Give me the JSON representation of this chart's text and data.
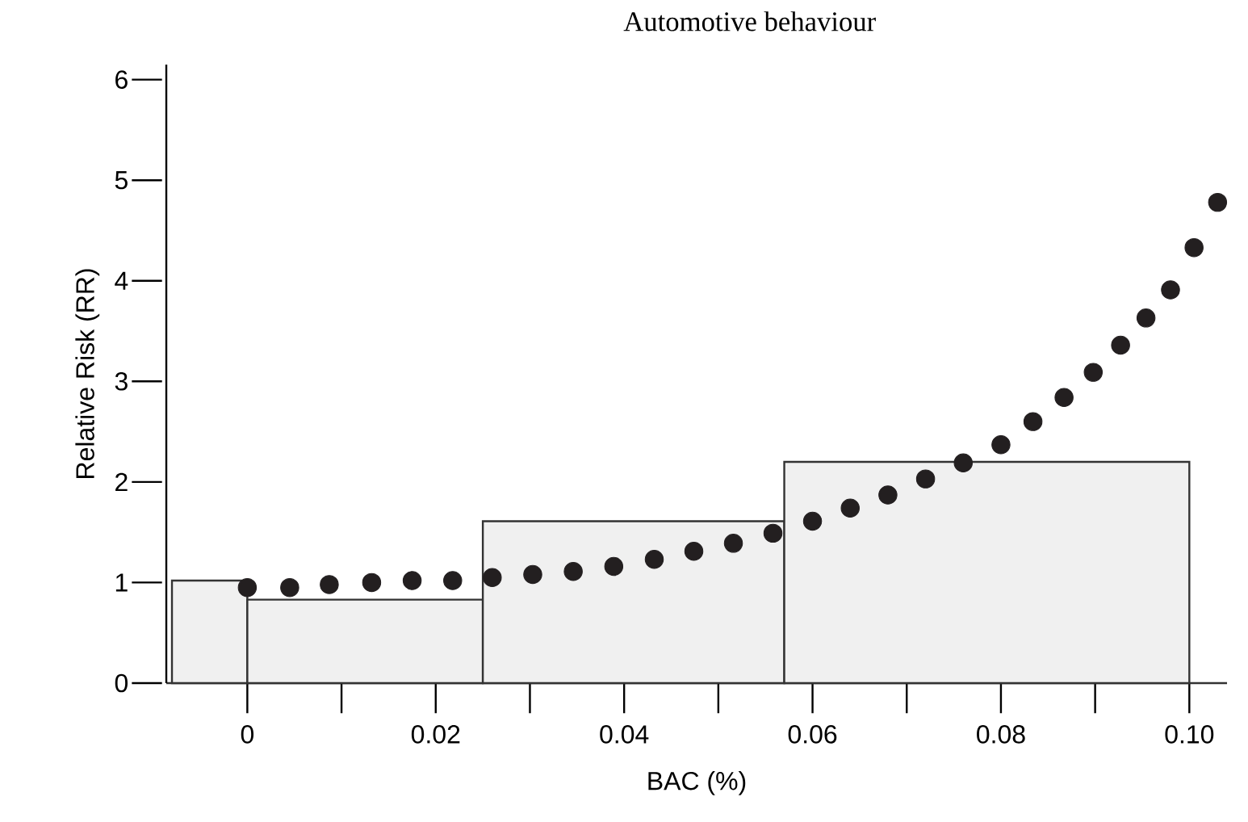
{
  "chart_data": {
    "type": "histogram",
    "title": "Automotive behaviour",
    "xlabel": "BAC (%)",
    "ylabel": "Relative Risk (RR)",
    "series": [
      {
        "type": "histogram",
        "color": "#f0f0f0",
        "bins": [
          -0.008,
          0,
          0.025,
          0.057,
          0.1
        ],
        "values": [
          1.02,
          0.83,
          1.61,
          2.2
        ]
      },
      {
        "type": "scatter",
        "color": "#231f20",
        "x": [
          0,
          0.0045,
          0.0087,
          0.0132,
          0.0175,
          0.0218,
          0.026,
          0.0303,
          0.0346,
          0.0389,
          0.0432,
          0.0474,
          0.0516,
          0.0558,
          0.06,
          0.064,
          0.068,
          0.072,
          0.076,
          0.08,
          0.0834,
          0.0867,
          0.0898,
          0.0927,
          0.0954,
          0.098,
          0.1005,
          0.103
        ],
        "values": [
          0.95,
          0.95,
          0.98,
          1.0,
          1.02,
          1.02,
          1.05,
          1.08,
          1.11,
          1.16,
          1.23,
          1.31,
          1.39,
          1.49,
          1.61,
          1.74,
          1.87,
          2.03,
          2.19,
          2.37,
          2.6,
          2.84,
          3.09,
          3.36,
          3.63,
          3.91,
          4.33,
          4.78
        ]
      }
    ],
    "marker": "circle",
    "xlim": [
      -0.0086,
      0.104
    ],
    "ylim": [
      0,
      6.15
    ],
    "xticks": [
      0,
      0.02,
      0.04,
      0.06,
      0.08,
      {
        "value": 0.1,
        "label": "0.10"
      }
    ],
    "yticks": [
      0,
      1,
      2,
      3,
      4,
      5,
      6
    ],
    "grid": false
  }
}
